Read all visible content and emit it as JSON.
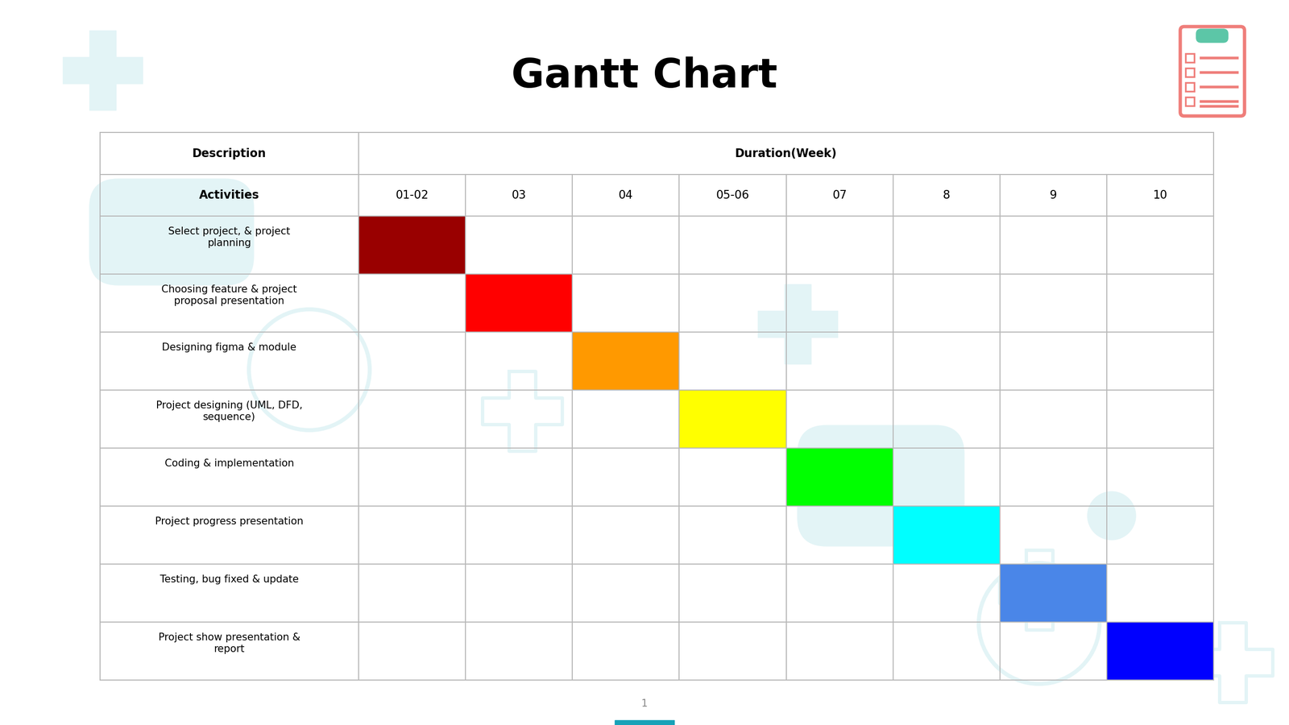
{
  "chart_data": {
    "type": "gantt",
    "title": "Gantt Chart",
    "header": {
      "description": "Description",
      "duration": "Duration(Week)",
      "activities": "Activities"
    },
    "periods": [
      "01-02",
      "03",
      "04",
      "05-06",
      "07",
      "8",
      "9",
      "10"
    ],
    "tasks": [
      {
        "name": "Select project, & project planning",
        "period": "01-02",
        "color": "#990000"
      },
      {
        "name": "Choosing feature & project proposal presentation",
        "period": "03",
        "color": "#ff0000"
      },
      {
        "name": "Designing figma & module",
        "period": "04",
        "color": "#ff9900"
      },
      {
        "name": "Project designing (UML, DFD, sequence)",
        "period": "05-06",
        "color": "#ffff00"
      },
      {
        "name": "Coding & implementation",
        "period": "07",
        "color": "#00ff00"
      },
      {
        "name": "Project progress presentation",
        "period": "8",
        "color": "#00ffff"
      },
      {
        "name": "Testing, bug fixed & update",
        "period": "9",
        "color": "#4a86e8"
      },
      {
        "name": "Project show presentation & report",
        "period": "10",
        "color": "#0000ff"
      }
    ],
    "page": 1
  }
}
